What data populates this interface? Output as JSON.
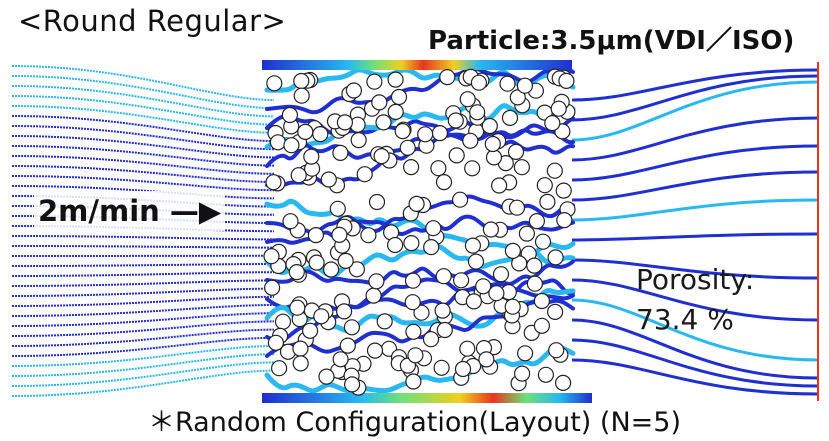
{
  "header": {
    "left_title": "<Round Regular>",
    "right_title": "Particle:3.5μm(VDI／ISO)"
  },
  "simulation": {
    "description_label": "2m/min",
    "porosity_label": "Porosity:",
    "porosity_value": "73.4 %"
  },
  "footer": {
    "caption": "＊Random Configuration(Layout) (N=5)"
  },
  "colors": {
    "slow": "#1f2fd0",
    "medium": "#29b9f0",
    "fast": "#f0d020",
    "hot": "#e8351e",
    "fiber_outline": "#222222"
  }
}
